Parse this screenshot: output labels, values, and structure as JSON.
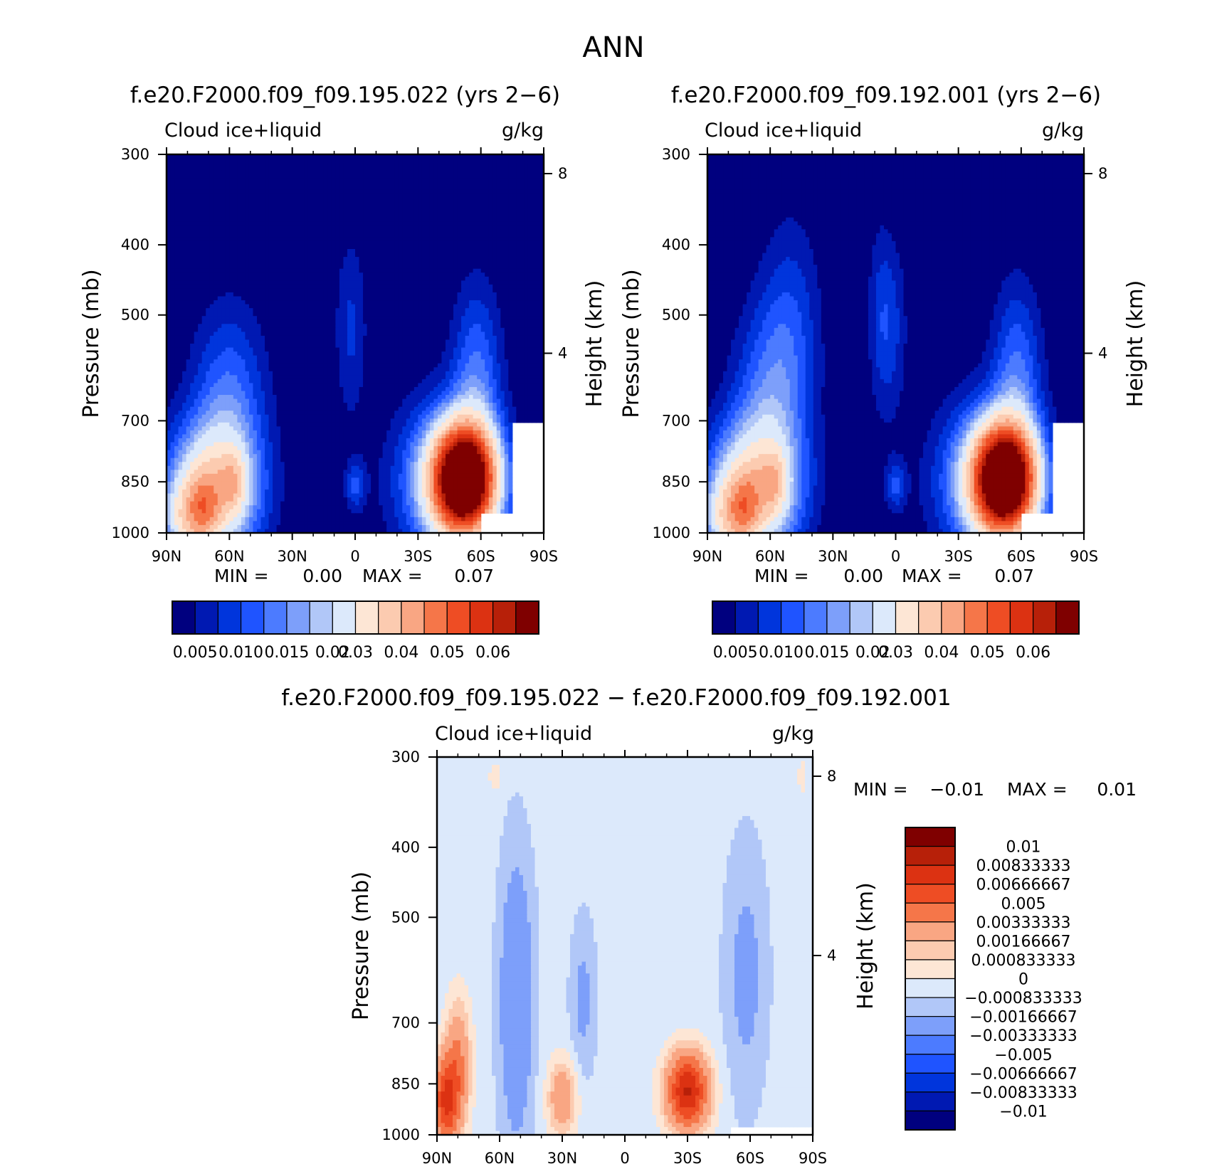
{
  "title": "ANN",
  "colors": {
    "abs_levels": [
      "#00007f",
      "#0019b2",
      "#0035dc",
      "#1f54ff",
      "#4c7bff",
      "#7d9ffa",
      "#b1c7f8",
      "#dce9fb",
      "#fde6d5",
      "#fccbb0",
      "#f9a683",
      "#f57649",
      "#ee4d24",
      "#dc3212",
      "#b72009",
      "#7f0000"
    ],
    "diff_levels": [
      "#00007f",
      "#0019b2",
      "#0035dc",
      "#1f54ff",
      "#4c7bff",
      "#7d9ffa",
      "#b1c7f8",
      "#dce9fb",
      "#fde6d5",
      "#fccbb0",
      "#f9a683",
      "#f57649",
      "#ee4d24",
      "#dc3212",
      "#b72009",
      "#7f0000"
    ]
  },
  "panels": [
    {
      "title": "f.e20.F2000.f09_f09.195.022 (yrs 2−6)",
      "left_label": "Cloud ice+liquid",
      "right_label": "g/kg",
      "ylabel": "Pressure (mb)",
      "y2label": "Height (km)",
      "min_text": "MIN =",
      "min_value": "0.00",
      "max_text": "MAX =",
      "max_value": "0.07"
    },
    {
      "title": "f.e20.F2000.f09_f09.192.001 (yrs 2−6)",
      "left_label": "Cloud ice+liquid",
      "right_label": "g/kg",
      "ylabel": "Pressure (mb)",
      "y2label": "Height (km)",
      "min_text": "MIN =",
      "min_value": "0.00",
      "max_text": "MAX =",
      "max_value": "0.07"
    },
    {
      "title": "f.e20.F2000.f09_f09.195.022 − f.e20.F2000.f09_f09.192.001",
      "left_label": "Cloud ice+liquid",
      "right_label": "g/kg",
      "ylabel": "Pressure (mb)",
      "y2label": "Height (km)",
      "min_text": "MIN =",
      "min_value": "−0.01",
      "max_text": "MAX =",
      "max_value": "0.01"
    }
  ],
  "colorbar_abs_labels": [
    "0.005",
    "0.010",
    "0.015",
    "0.02",
    "0.03",
    "0.04",
    "0.05",
    "0.06"
  ],
  "colorbar_diff_labels": [
    "0.01",
    "0.00833333",
    "0.00666667",
    "0.005",
    "0.00333333",
    "0.00166667",
    "0.000833333",
    "0",
    "−0.000833333",
    "−0.00166667",
    "−0.00333333",
    "−0.005",
    "−0.00666667",
    "−0.00833333",
    "−0.01"
  ],
  "chart_data": [
    {
      "type": "heatmap",
      "title": "f.e20.F2000.f09_f09.195.022 (yrs 2−6)",
      "xlabel": "",
      "ylabel": "Pressure (mb)",
      "y2label": "Height (km)",
      "xticks": [
        "90N",
        "60N",
        "30N",
        "0",
        "30S",
        "60S",
        "90S"
      ],
      "xtick_values": [
        90,
        60,
        30,
        0,
        -30,
        -60,
        -90
      ],
      "yticks": [
        "300",
        "400",
        "500",
        "700",
        "850",
        "1000"
      ],
      "ytick_values": [
        300,
        400,
        500,
        700,
        850,
        1000
      ],
      "y2ticks": [
        "8",
        "4"
      ],
      "y2tick_values": [
        8,
        4
      ],
      "xlim": [
        90,
        -90
      ],
      "ylim": [
        1000,
        300
      ],
      "yscale": "log",
      "contour_levels": [
        0.005,
        0.0075,
        0.01,
        0.0125,
        0.015,
        0.0175,
        0.02,
        0.025,
        0.03,
        0.035,
        0.04,
        0.045,
        0.05,
        0.055,
        0.06
      ],
      "min": 0.0,
      "max": 0.07,
      "features": [
        {
          "lat": 70,
          "p": 920,
          "value": 0.035
        },
        {
          "lat": 60,
          "p": 860,
          "value": 0.036
        },
        {
          "lat": 75,
          "p": 960,
          "value": 0.04
        },
        {
          "lat": -50,
          "p": 850,
          "value": 0.07
        },
        {
          "lat": 0,
          "p": 560,
          "value": 0.008
        }
      ]
    },
    {
      "type": "heatmap",
      "title": "f.e20.F2000.f09_f09.192.001 (yrs 2−6)",
      "xlabel": "",
      "ylabel": "Pressure (mb)",
      "y2label": "Height (km)",
      "xticks": [
        "90N",
        "60N",
        "30N",
        "0",
        "30S",
        "60S",
        "90S"
      ],
      "xtick_values": [
        90,
        60,
        30,
        0,
        -30,
        -60,
        -90
      ],
      "yticks": [
        "300",
        "400",
        "500",
        "700",
        "850",
        "1000"
      ],
      "ytick_values": [
        300,
        400,
        500,
        700,
        850,
        1000
      ],
      "y2ticks": [
        "8",
        "4"
      ],
      "y2tick_values": [
        8,
        4
      ],
      "xlim": [
        90,
        -90
      ],
      "ylim": [
        1000,
        300
      ],
      "yscale": "log",
      "contour_levels": [
        0.005,
        0.0075,
        0.01,
        0.0125,
        0.015,
        0.0175,
        0.02,
        0.025,
        0.03,
        0.035,
        0.04,
        0.045,
        0.05,
        0.055,
        0.06
      ],
      "min": 0.0,
      "max": 0.07,
      "features": [
        {
          "lat": 62,
          "p": 870,
          "value": 0.04
        },
        {
          "lat": 75,
          "p": 950,
          "value": 0.04
        },
        {
          "lat": -50,
          "p": 850,
          "value": 0.07
        },
        {
          "lat": 5,
          "p": 540,
          "value": 0.008
        }
      ]
    },
    {
      "type": "heatmap",
      "title": "f.e20.F2000.f09_f09.195.022 − f.e20.F2000.f09_f09.192.001",
      "xlabel": "",
      "ylabel": "Pressure (mb)",
      "y2label": "Height (km)",
      "xticks": [
        "90N",
        "60N",
        "30N",
        "0",
        "30S",
        "60S",
        "90S"
      ],
      "xtick_values": [
        90,
        60,
        30,
        0,
        -30,
        -60,
        -90
      ],
      "yticks": [
        "300",
        "400",
        "500",
        "700",
        "850",
        "1000"
      ],
      "ytick_values": [
        300,
        400,
        500,
        700,
        850,
        1000
      ],
      "y2ticks": [
        "8",
        "4"
      ],
      "y2tick_values": [
        8,
        4
      ],
      "xlim": [
        90,
        -90
      ],
      "ylim": [
        1000,
        300
      ],
      "yscale": "log",
      "contour_levels": [
        -0.01,
        -0.00833333,
        -0.00666667,
        -0.005,
        -0.00333333,
        -0.00166667,
        -0.000833333,
        0,
        0.000833333,
        0.00166667,
        0.00333333,
        0.005,
        0.00666667,
        0.00833333,
        0.01
      ],
      "min": -0.01,
      "max": 0.01,
      "features": [
        {
          "lat": 85,
          "p": 900,
          "value": 0.006
        },
        {
          "lat": 52,
          "p": 650,
          "value": -0.0025
        },
        {
          "lat": 30,
          "p": 880,
          "value": 0.003
        },
        {
          "lat": -30,
          "p": 860,
          "value": 0.0085
        },
        {
          "lat": -58,
          "p": 600,
          "value": -0.0015
        }
      ]
    }
  ]
}
